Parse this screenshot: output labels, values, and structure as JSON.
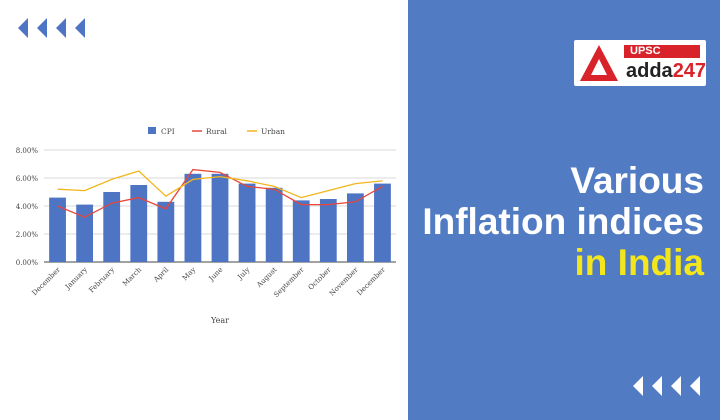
{
  "logo": {
    "badge": "UPSC",
    "word": "adda",
    "number": "247",
    "icon": "adda-logo-icon"
  },
  "headline": {
    "line1": "Various",
    "line2": "Inflation indices",
    "line3": "in India"
  },
  "colors": {
    "panel": "#517bc2",
    "bar": "#4e74c4",
    "rural": "#e8473a",
    "urban": "#f2b61c",
    "headline_highlight": "#f3e61c",
    "badge": "#d8232a"
  },
  "chart_data": {
    "type": "bar",
    "title": "",
    "xlabel": "Year",
    "ylabel": "",
    "ylim": [
      0,
      8
    ],
    "yticks": [
      "0.00%",
      "2.00%",
      "4.00%",
      "6.00%",
      "8.00%"
    ],
    "legend_position": "top",
    "grid": true,
    "categories": [
      "December",
      "January",
      "February",
      "March",
      "April",
      "May",
      "June",
      "July",
      "August",
      "September",
      "October",
      "November",
      "December"
    ],
    "series": [
      {
        "name": "CPI",
        "kind": "bar",
        "values": [
          4.6,
          4.1,
          5.0,
          5.5,
          4.3,
          6.3,
          6.3,
          5.6,
          5.3,
          4.4,
          4.5,
          4.9,
          5.6
        ]
      },
      {
        "name": "Rural",
        "kind": "line",
        "values": [
          4.0,
          3.2,
          4.2,
          4.6,
          3.8,
          6.6,
          6.4,
          5.4,
          5.2,
          4.1,
          4.1,
          4.3,
          5.4
        ]
      },
      {
        "name": "Urban",
        "kind": "line",
        "values": [
          5.2,
          5.1,
          5.9,
          6.5,
          4.7,
          5.9,
          6.1,
          5.8,
          5.4,
          4.6,
          5.1,
          5.6,
          5.8
        ]
      }
    ]
  }
}
